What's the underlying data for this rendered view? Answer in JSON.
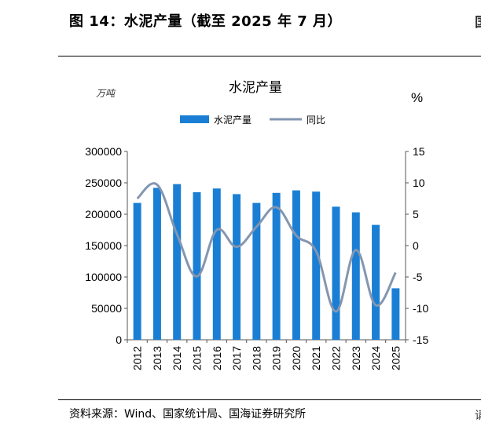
{
  "figure": {
    "title": "图 14：水泥产量（截至 2025 年 7 月）",
    "source": "资料来源：Wind、国家统计局、国海证券研究所",
    "edge_glyph_top": "国",
    "edge_glyph_bottom": "请"
  },
  "chart_data": {
    "type": "bar",
    "title": "水泥产量",
    "left_unit": "万吨",
    "right_unit": "%",
    "categories": [
      "2012",
      "2013",
      "2014",
      "2015",
      "2016",
      "2017",
      "2018",
      "2019",
      "2020",
      "2021",
      "2022",
      "2023",
      "2024",
      "2025"
    ],
    "series": [
      {
        "name": "水泥产量",
        "type": "bar",
        "axis": "left",
        "color": "#1a7fd4",
        "values": [
          218000,
          242000,
          248000,
          235000,
          241000,
          232000,
          218000,
          234000,
          238000,
          236000,
          212000,
          203000,
          183000,
          82000
        ]
      },
      {
        "name": "同比",
        "type": "line",
        "axis": "right",
        "color": "#8496b0",
        "values": [
          7.5,
          9.7,
          1.8,
          -4.9,
          2.5,
          -0.2,
          3.0,
          6.1,
          1.6,
          -0.9,
          -10.5,
          -0.7,
          -9.5,
          -4.3
        ]
      }
    ],
    "ylim_left": [
      0,
      300000
    ],
    "yticks_left": [
      "300000",
      "250000",
      "200000",
      "150000",
      "100000",
      "50000",
      "0"
    ],
    "ylim_right": [
      -15,
      15
    ],
    "yticks_right": [
      "15",
      "10",
      "5",
      "0",
      "-5",
      "-10",
      "-15"
    ],
    "legend_position": "top-center",
    "grid": false
  }
}
